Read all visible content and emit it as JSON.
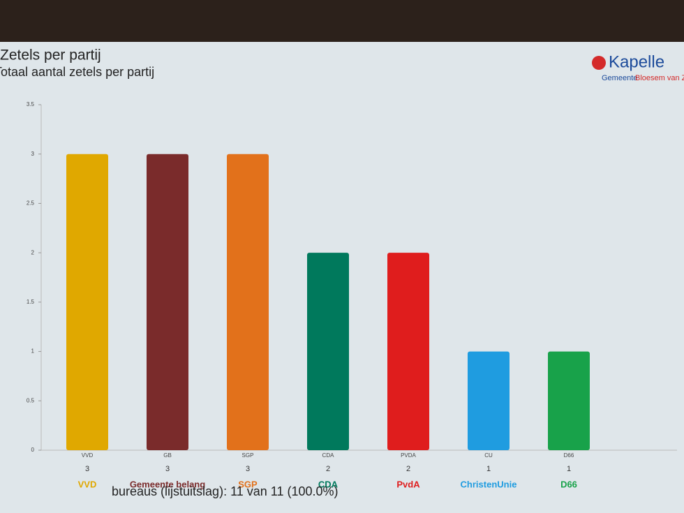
{
  "chart_data": {
    "type": "bar",
    "title": "Zetels per partij",
    "subtitle": "Totaal aantal zetels per partij",
    "brand": {
      "name": "Kapelle",
      "line1": "Gemeente",
      "line2": "Bloesem van Z"
    },
    "footer": "bureaus (lijstuitslag): 11 van 11 (100.0%)",
    "categories": [
      "VVD",
      "GB",
      "SGP",
      "CDA",
      "PVDA",
      "CU",
      "D66"
    ],
    "values": [
      3,
      3,
      3,
      2,
      2,
      1,
      1
    ],
    "colors": [
      "#e0a800",
      "#7a2b2b",
      "#e2711b",
      "#00795c",
      "#df1d1d",
      "#1f9ce0",
      "#18a24a"
    ],
    "logos": [
      "VVD",
      "Gemeente belang",
      "SGP",
      "CDA",
      "PvdA",
      "ChristenUnie",
      "D66"
    ],
    "ylim": [
      0,
      3.5
    ],
    "yticks": [
      0,
      0.5,
      1,
      1.5,
      2,
      2.5,
      3,
      3.5
    ]
  }
}
